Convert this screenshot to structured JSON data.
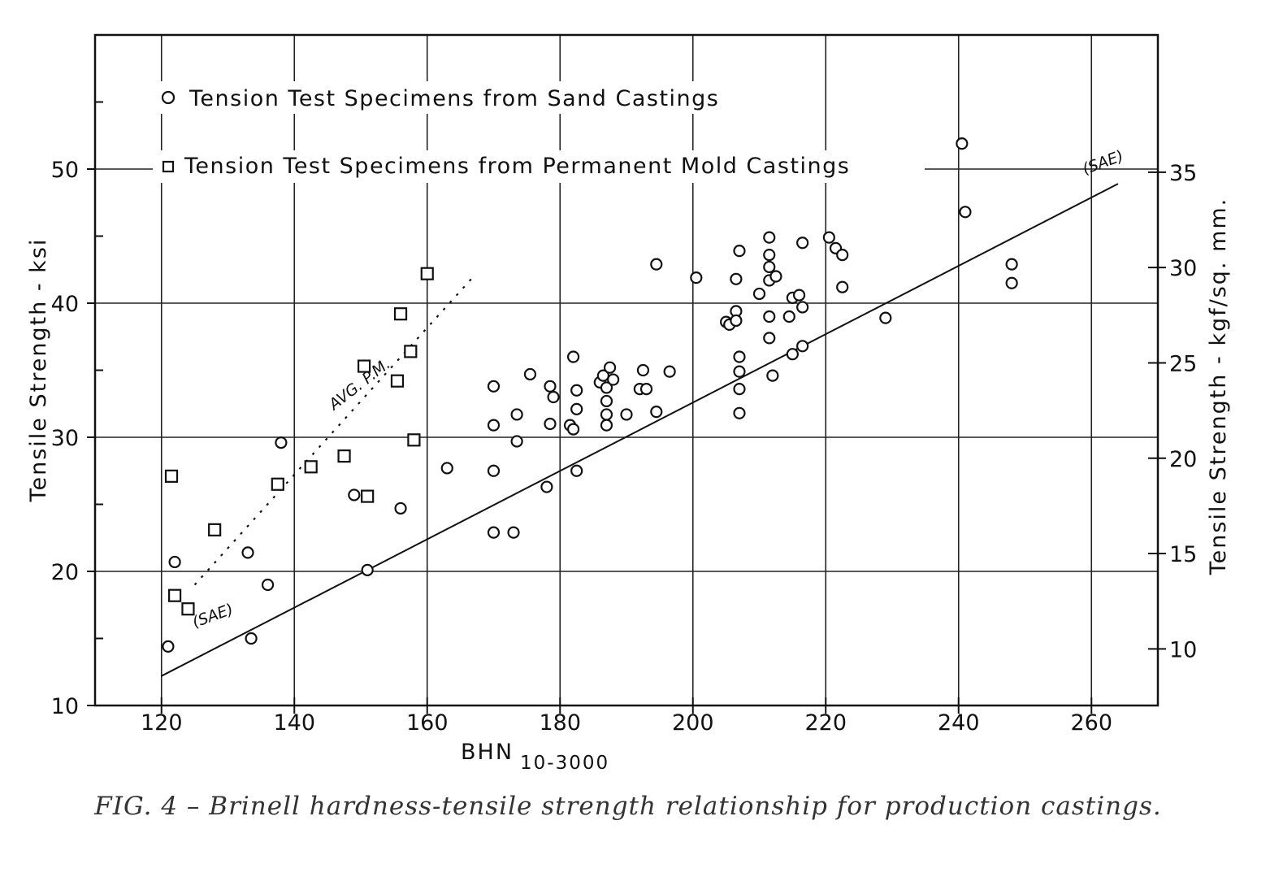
{
  "chart_data": {
    "type": "scatter",
    "caption": "FIG. 4 – Brinell hardness-tensile strength relationship for production castings.",
    "xlabel_main": "BHN",
    "xlabel_sub": "10-3000",
    "ylabel": "Tensile Strength - ksi",
    "y2label": "Tensile Strength - kgf/sq. mm.",
    "xlim": [
      110,
      270
    ],
    "ylim": [
      10,
      60
    ],
    "y2lim": [
      7.03,
      42.2
    ],
    "x_ticks": [
      120,
      140,
      160,
      180,
      200,
      220,
      240,
      260
    ],
    "y_ticks": [
      10,
      20,
      30,
      40,
      50
    ],
    "y2_ticks": [
      10,
      15,
      20,
      25,
      30,
      35
    ],
    "grid": true,
    "legend_position": "top-left",
    "series": [
      {
        "name": "Tension Test Specimens from Sand Castings",
        "marker": "circle",
        "points": [
          [
            121,
            14.4
          ],
          [
            122,
            20.7
          ],
          [
            133,
            21.4
          ],
          [
            133.5,
            15
          ],
          [
            136,
            19
          ],
          [
            138,
            29.6
          ],
          [
            149,
            25.7
          ],
          [
            151,
            20.1
          ],
          [
            156,
            24.7
          ],
          [
            163,
            27.7
          ],
          [
            170,
            33.8
          ],
          [
            170,
            30.9
          ],
          [
            170,
            27.5
          ],
          [
            170,
            22.9
          ],
          [
            173,
            22.9
          ],
          [
            173.5,
            31.7
          ],
          [
            173.5,
            29.7
          ],
          [
            175.5,
            34.7
          ],
          [
            178.5,
            33.8
          ],
          [
            179,
            33
          ],
          [
            178.5,
            31
          ],
          [
            178,
            26.3
          ],
          [
            181.5,
            30.9
          ],
          [
            182,
            30.6
          ],
          [
            182,
            36
          ],
          [
            182.5,
            33.5
          ],
          [
            182.5,
            32.1
          ],
          [
            182.5,
            27.5
          ],
          [
            186,
            34.1
          ],
          [
            186.5,
            34.6
          ],
          [
            187,
            33.7
          ],
          [
            187,
            32.7
          ],
          [
            187,
            31.7
          ],
          [
            187,
            30.9
          ],
          [
            187.5,
            35.2
          ],
          [
            188,
            34.3
          ],
          [
            190,
            31.7
          ],
          [
            192,
            33.6
          ],
          [
            192.5,
            35
          ],
          [
            193,
            33.6
          ],
          [
            194.5,
            31.9
          ],
          [
            194.5,
            42.9
          ],
          [
            196.5,
            34.9
          ],
          [
            200.5,
            41.9
          ],
          [
            205,
            38.6
          ],
          [
            205.5,
            38.4
          ],
          [
            206.5,
            39.4
          ],
          [
            206.5,
            38.7
          ],
          [
            206.5,
            41.8
          ],
          [
            207,
            33.6
          ],
          [
            207,
            34.9
          ],
          [
            207,
            36
          ],
          [
            207,
            31.8
          ],
          [
            207,
            43.9
          ],
          [
            210,
            40.7
          ],
          [
            211.5,
            44.9
          ],
          [
            211.5,
            43.6
          ],
          [
            211.5,
            42.7
          ],
          [
            211.5,
            41.7
          ],
          [
            211.5,
            39
          ],
          [
            211.5,
            37.4
          ],
          [
            212,
            34.6
          ],
          [
            212.5,
            42
          ],
          [
            214.5,
            39
          ],
          [
            215,
            40.4
          ],
          [
            215,
            36.2
          ],
          [
            216,
            40.6
          ],
          [
            216.5,
            39.7
          ],
          [
            216.5,
            44.5
          ],
          [
            216.5,
            36.8
          ],
          [
            220.5,
            44.9
          ],
          [
            221.5,
            44.1
          ],
          [
            222.5,
            43.6
          ],
          [
            222.5,
            41.2
          ],
          [
            229,
            38.9
          ],
          [
            240.5,
            51.9
          ],
          [
            241,
            46.8
          ],
          [
            248,
            42.9
          ],
          [
            248,
            41.5
          ]
        ]
      },
      {
        "name": "Tension Test Specimens from Permanent Mold Castings",
        "marker": "square",
        "points": [
          [
            121.5,
            27.1
          ],
          [
            122,
            18.2
          ],
          [
            124,
            17.2
          ],
          [
            128,
            23.1
          ],
          [
            137.5,
            26.5
          ],
          [
            142.5,
            27.8
          ],
          [
            147.5,
            28.6
          ],
          [
            150.5,
            35.3
          ],
          [
            151,
            25.6
          ],
          [
            155.5,
            34.2
          ],
          [
            156,
            39.2
          ],
          [
            157.5,
            36.4
          ],
          [
            158,
            29.8
          ],
          [
            160,
            42.2
          ]
        ]
      }
    ],
    "lines": [
      {
        "label": "(SAE)",
        "style": "solid",
        "from": [
          120,
          12.2
        ],
        "to": [
          264,
          48.9
        ]
      },
      {
        "label": "AVG. P.M.",
        "style": "dotted",
        "from": [
          125,
          19
        ],
        "to": [
          167,
          42
        ]
      }
    ],
    "annotations": [
      {
        "text": "(SAE)",
        "x": 125,
        "y": 15.8
      },
      {
        "text": "(SAE)",
        "x": 259,
        "y": 49.6
      },
      {
        "text": "AVG. P.M.",
        "x": 146,
        "y": 32
      }
    ]
  }
}
